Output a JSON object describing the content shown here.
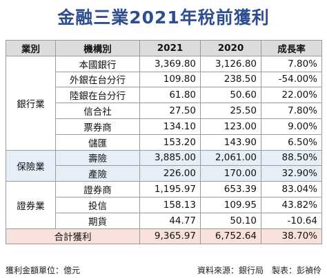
{
  "title": "金融三業2021年稅前獲利",
  "headers": [
    "業別",
    "機構別",
    "2021",
    "2020",
    "成長率"
  ],
  "groups": [
    {
      "name": "銀行業",
      "rows": [
        {
          "name": "本國銀行",
          "y2021": "3,369.80",
          "y2020": "3,126.80",
          "growth": "7.80%"
        },
        {
          "name": "外銀在台分行",
          "y2021": "109.80",
          "y2020": "238.50",
          "growth": "-54.00%"
        },
        {
          "name": "陸銀在台分行",
          "y2021": "61.80",
          "y2020": "50.60",
          "growth": "22.00%"
        },
        {
          "name": "信合社",
          "y2021": "27.50",
          "y2020": "25.50",
          "growth": "7.80%"
        },
        {
          "name": "票券商",
          "y2021": "134.10",
          "y2020": "123.00",
          "growth": "9.00%"
        },
        {
          "name": "儲匯",
          "y2021": "153.20",
          "y2020": "143.90",
          "growth": "6.50%"
        }
      ]
    },
    {
      "name": "保險業",
      "rows": [
        {
          "name": "壽險",
          "y2021": "3,885.00",
          "y2020": "2,061.00",
          "growth": "88.50%"
        },
        {
          "name": "產險",
          "y2021": "226.00",
          "y2020": "170.00",
          "growth": "32.90%"
        }
      ]
    },
    {
      "name": "證券業",
      "rows": [
        {
          "name": "證券商",
          "y2021": "1,195.97",
          "y2020": "653.39",
          "growth": "83.04%"
        },
        {
          "name": "投信",
          "y2021": "158.13",
          "y2020": "109.95",
          "growth": "43.82%"
        },
        {
          "name": "期貨",
          "y2021": "44.77",
          "y2020": "50.10",
          "growth": "-10.64"
        }
      ]
    }
  ],
  "total": {
    "label": "合計獲利",
    "y2021": "9,365.97",
    "y2020": "6,752.64",
    "growth": "38.70%"
  },
  "footer": {
    "unit": "獲利金額單位：億元",
    "source": "資料來源：銀行局　製表：彭禎伶"
  },
  "colors": {
    "title": "#2e4e92",
    "header_bg": "#dcdcdc",
    "band_blue": "#e6eef7",
    "total_bg": "#f8e1db"
  }
}
